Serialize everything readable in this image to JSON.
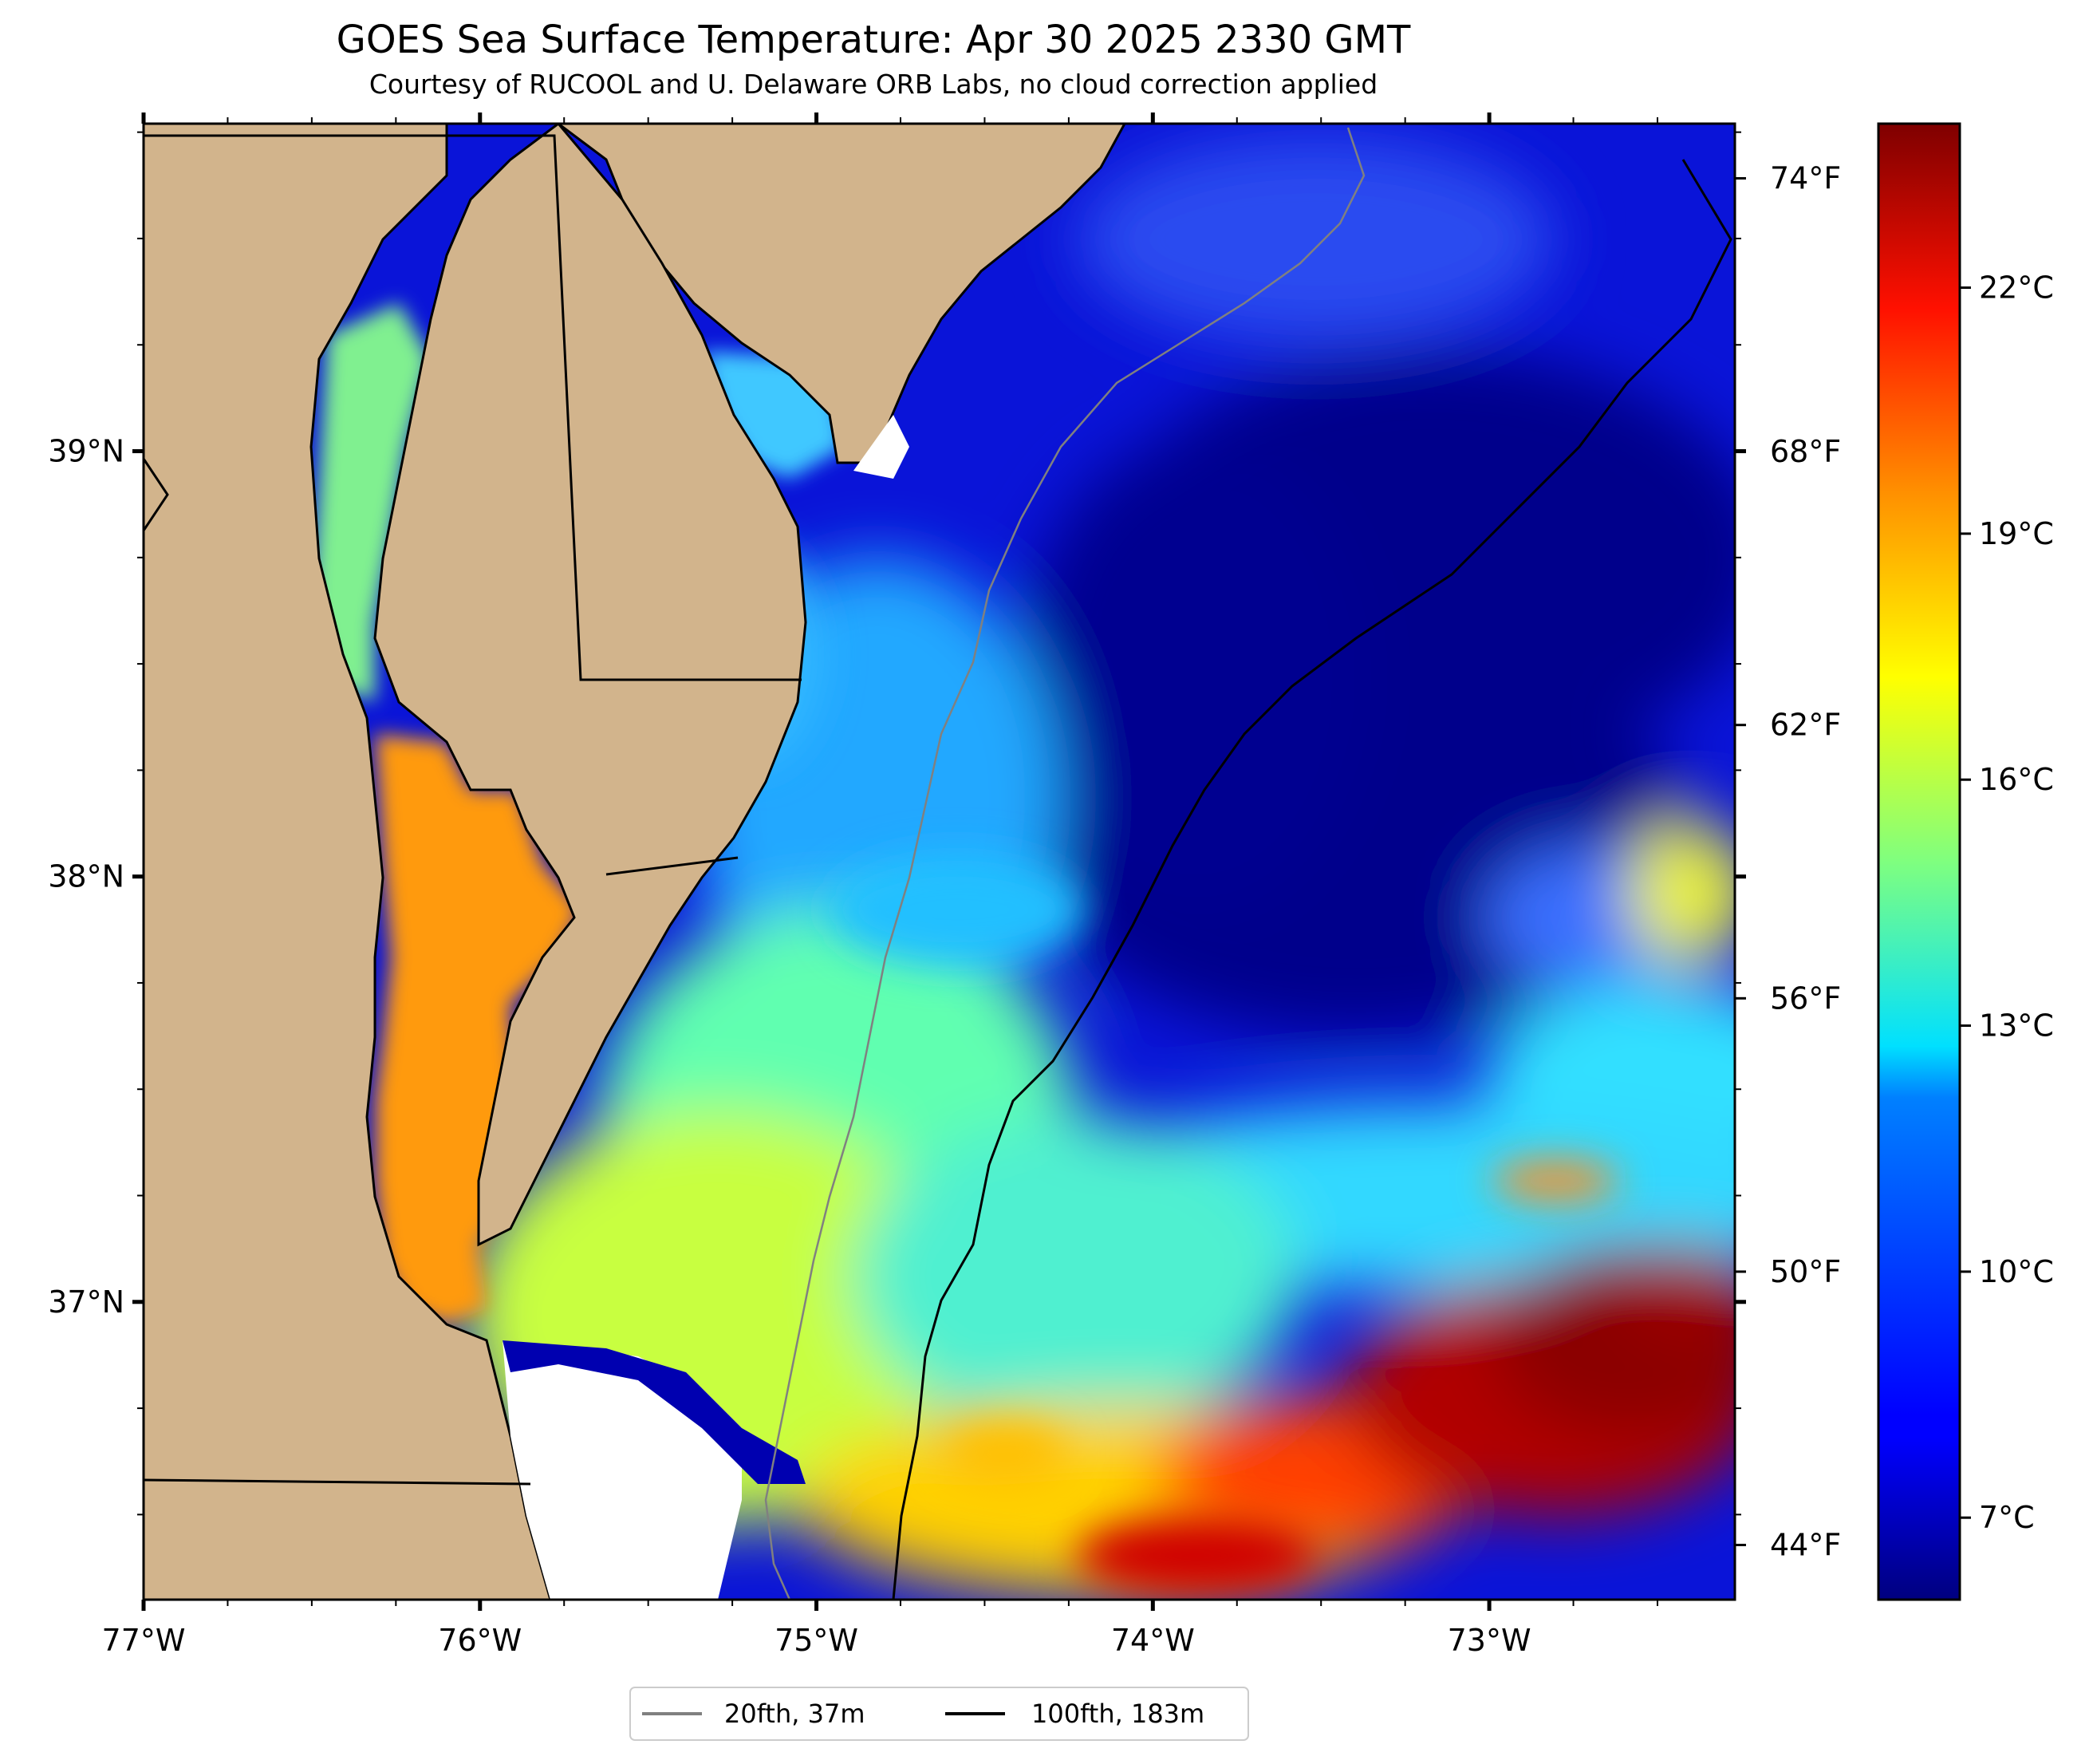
{
  "title": "GOES Sea Surface Temperature: Apr 30 2025 2330 GMT",
  "subtitle": "Courtesy of RUCOOL and U. Delaware ORB Labs, no cloud correction applied",
  "map": {
    "lon_range": [
      -77.0,
      -72.27
    ],
    "lat_range": [
      36.3,
      39.77
    ],
    "lon_ticks": [
      {
        "value": -77,
        "label": "77°W"
      },
      {
        "value": -76,
        "label": "76°W"
      },
      {
        "value": -75,
        "label": "75°W"
      },
      {
        "value": -74,
        "label": "74°W"
      },
      {
        "value": -73,
        "label": "73°W"
      }
    ],
    "lat_ticks": [
      {
        "value": 39,
        "label": "39°N"
      },
      {
        "value": 38,
        "label": "38°N"
      },
      {
        "value": 37,
        "label": "37°N"
      }
    ],
    "land_color": "#d2b48c",
    "ocean_cold_color": "#00008b",
    "ocean_warm_color": "#8b0000"
  },
  "colorbar": {
    "min_c": 6,
    "max_c": 24,
    "celsius_ticks": [
      {
        "value": 7,
        "label": "7°C"
      },
      {
        "value": 10,
        "label": "10°C"
      },
      {
        "value": 13,
        "label": "13°C"
      },
      {
        "value": 16,
        "label": "16°C"
      },
      {
        "value": 19,
        "label": "19°C"
      },
      {
        "value": 22,
        "label": "22°C"
      }
    ],
    "fahrenheit_ticks": [
      {
        "value": 44,
        "label": "44°F"
      },
      {
        "value": 50,
        "label": "50°F"
      },
      {
        "value": 56,
        "label": "56°F"
      },
      {
        "value": 62,
        "label": "62°F"
      },
      {
        "value": 68,
        "label": "68°F"
      },
      {
        "value": 74,
        "label": "74°F"
      }
    ],
    "colormap": "jet"
  },
  "legend": {
    "items": [
      {
        "label": "20fth, 37m",
        "color": "#808080"
      },
      {
        "label": "100fth, 183m",
        "color": "#000000"
      }
    ]
  }
}
